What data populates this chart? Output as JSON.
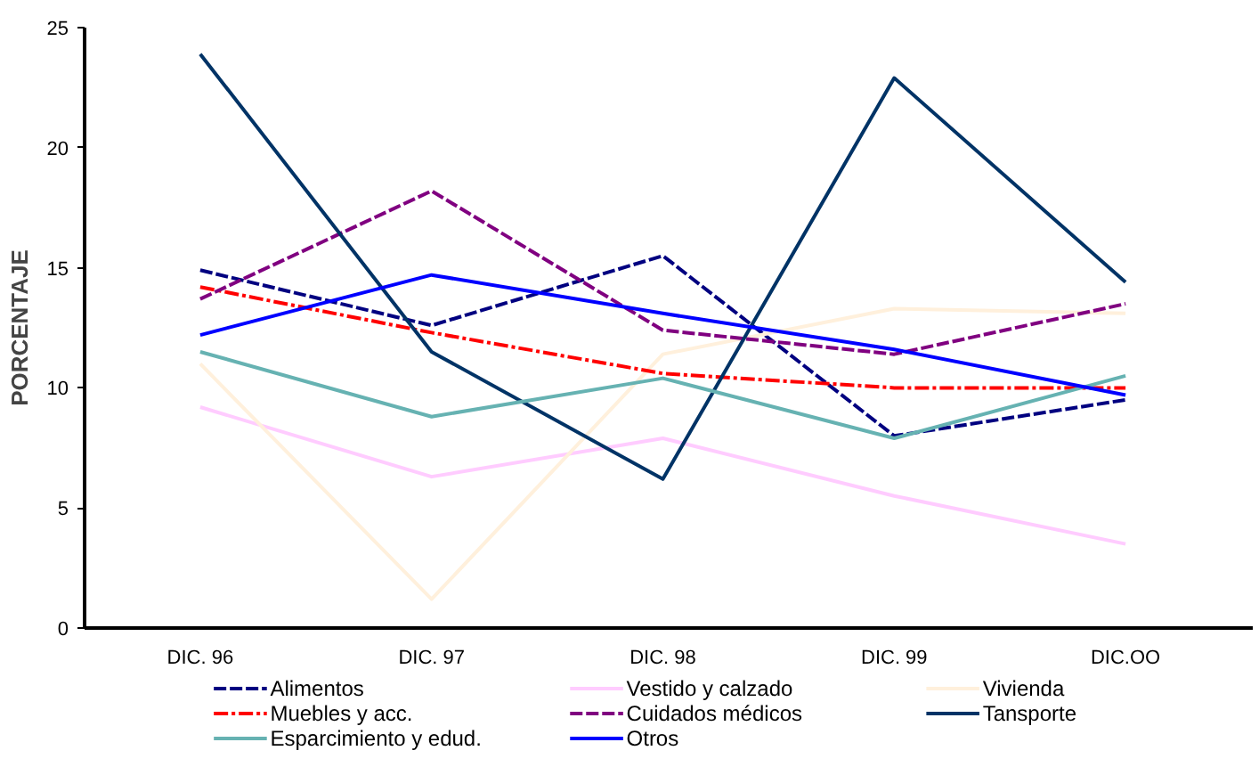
{
  "chart_data": {
    "type": "line",
    "ylabel": "PORCENTAJE",
    "categories": [
      "DIC. 96",
      "DIC. 97",
      "DIC. 98",
      "DIC. 99",
      "DIC.OO"
    ],
    "ylim": [
      0,
      25
    ],
    "yticks": [
      0,
      5,
      10,
      15,
      20,
      25
    ],
    "grid": false,
    "legend": "bottom",
    "series": [
      {
        "name": "Alimentos",
        "color": "#000080",
        "line_style": "dashed",
        "values": [
          14.9,
          12.6,
          15.5,
          8.0,
          9.5
        ]
      },
      {
        "name": "Vestido y calzado",
        "color": "#ffccff",
        "line_style": "solid",
        "values": [
          9.2,
          6.3,
          7.9,
          5.5,
          3.5
        ]
      },
      {
        "name": "Vivienda",
        "color": "#fff0dc",
        "line_style": "solid",
        "values": [
          11.0,
          1.2,
          11.4,
          13.3,
          13.1
        ]
      },
      {
        "name": "Muebles y acc.",
        "color": "#ff0000",
        "line_style": "dashdot",
        "values": [
          14.2,
          12.3,
          10.6,
          10.0,
          10.0
        ]
      },
      {
        "name": "Cuidados médicos",
        "color": "#800080",
        "line_style": "dashed",
        "values": [
          13.7,
          18.2,
          12.4,
          11.4,
          13.5
        ]
      },
      {
        "name": "Tansporte",
        "color": "#003366",
        "line_style": "solid",
        "values": [
          23.9,
          11.5,
          6.2,
          22.9,
          14.4
        ]
      },
      {
        "name": "Esparcimiento y edud.",
        "color": "#66b2b2",
        "line_style": "solid",
        "values": [
          11.5,
          8.8,
          10.4,
          7.9,
          10.5
        ]
      },
      {
        "name": "Otros",
        "color": "#0000ff",
        "line_style": "solid",
        "values": [
          12.2,
          14.7,
          13.1,
          11.6,
          9.7
        ]
      }
    ]
  }
}
